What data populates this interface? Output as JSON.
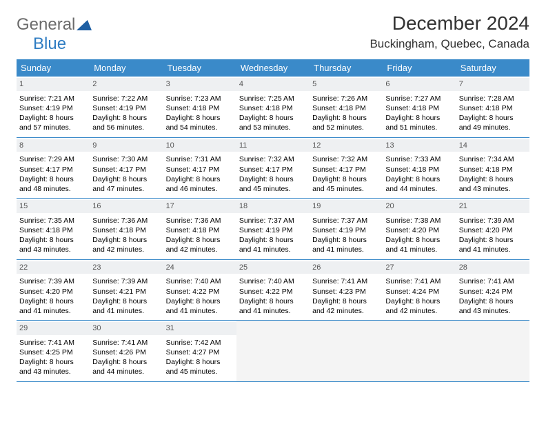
{
  "logo": {
    "text_general": "General",
    "text_blue": "Blue",
    "triangle_color": "#1e5fa3"
  },
  "header": {
    "month_title": "December 2024",
    "location": "Buckingham, Quebec, Canada"
  },
  "colors": {
    "header_bg": "#3a8ac9",
    "header_text": "#ffffff",
    "row_divider": "#3a8ac9",
    "daynum_bg": "#eef0f2"
  },
  "day_names": [
    "Sunday",
    "Monday",
    "Tuesday",
    "Wednesday",
    "Thursday",
    "Friday",
    "Saturday"
  ],
  "weeks": [
    [
      {
        "day": "1",
        "sunrise": "Sunrise: 7:21 AM",
        "sunset": "Sunset: 4:19 PM",
        "daylight": "Daylight: 8 hours and 57 minutes."
      },
      {
        "day": "2",
        "sunrise": "Sunrise: 7:22 AM",
        "sunset": "Sunset: 4:19 PM",
        "daylight": "Daylight: 8 hours and 56 minutes."
      },
      {
        "day": "3",
        "sunrise": "Sunrise: 7:23 AM",
        "sunset": "Sunset: 4:18 PM",
        "daylight": "Daylight: 8 hours and 54 minutes."
      },
      {
        "day": "4",
        "sunrise": "Sunrise: 7:25 AM",
        "sunset": "Sunset: 4:18 PM",
        "daylight": "Daylight: 8 hours and 53 minutes."
      },
      {
        "day": "5",
        "sunrise": "Sunrise: 7:26 AM",
        "sunset": "Sunset: 4:18 PM",
        "daylight": "Daylight: 8 hours and 52 minutes."
      },
      {
        "day": "6",
        "sunrise": "Sunrise: 7:27 AM",
        "sunset": "Sunset: 4:18 PM",
        "daylight": "Daylight: 8 hours and 51 minutes."
      },
      {
        "day": "7",
        "sunrise": "Sunrise: 7:28 AM",
        "sunset": "Sunset: 4:18 PM",
        "daylight": "Daylight: 8 hours and 49 minutes."
      }
    ],
    [
      {
        "day": "8",
        "sunrise": "Sunrise: 7:29 AM",
        "sunset": "Sunset: 4:17 PM",
        "daylight": "Daylight: 8 hours and 48 minutes."
      },
      {
        "day": "9",
        "sunrise": "Sunrise: 7:30 AM",
        "sunset": "Sunset: 4:17 PM",
        "daylight": "Daylight: 8 hours and 47 minutes."
      },
      {
        "day": "10",
        "sunrise": "Sunrise: 7:31 AM",
        "sunset": "Sunset: 4:17 PM",
        "daylight": "Daylight: 8 hours and 46 minutes."
      },
      {
        "day": "11",
        "sunrise": "Sunrise: 7:32 AM",
        "sunset": "Sunset: 4:17 PM",
        "daylight": "Daylight: 8 hours and 45 minutes."
      },
      {
        "day": "12",
        "sunrise": "Sunrise: 7:32 AM",
        "sunset": "Sunset: 4:17 PM",
        "daylight": "Daylight: 8 hours and 45 minutes."
      },
      {
        "day": "13",
        "sunrise": "Sunrise: 7:33 AM",
        "sunset": "Sunset: 4:18 PM",
        "daylight": "Daylight: 8 hours and 44 minutes."
      },
      {
        "day": "14",
        "sunrise": "Sunrise: 7:34 AM",
        "sunset": "Sunset: 4:18 PM",
        "daylight": "Daylight: 8 hours and 43 minutes."
      }
    ],
    [
      {
        "day": "15",
        "sunrise": "Sunrise: 7:35 AM",
        "sunset": "Sunset: 4:18 PM",
        "daylight": "Daylight: 8 hours and 43 minutes."
      },
      {
        "day": "16",
        "sunrise": "Sunrise: 7:36 AM",
        "sunset": "Sunset: 4:18 PM",
        "daylight": "Daylight: 8 hours and 42 minutes."
      },
      {
        "day": "17",
        "sunrise": "Sunrise: 7:36 AM",
        "sunset": "Sunset: 4:18 PM",
        "daylight": "Daylight: 8 hours and 42 minutes."
      },
      {
        "day": "18",
        "sunrise": "Sunrise: 7:37 AM",
        "sunset": "Sunset: 4:19 PM",
        "daylight": "Daylight: 8 hours and 41 minutes."
      },
      {
        "day": "19",
        "sunrise": "Sunrise: 7:37 AM",
        "sunset": "Sunset: 4:19 PM",
        "daylight": "Daylight: 8 hours and 41 minutes."
      },
      {
        "day": "20",
        "sunrise": "Sunrise: 7:38 AM",
        "sunset": "Sunset: 4:20 PM",
        "daylight": "Daylight: 8 hours and 41 minutes."
      },
      {
        "day": "21",
        "sunrise": "Sunrise: 7:39 AM",
        "sunset": "Sunset: 4:20 PM",
        "daylight": "Daylight: 8 hours and 41 minutes."
      }
    ],
    [
      {
        "day": "22",
        "sunrise": "Sunrise: 7:39 AM",
        "sunset": "Sunset: 4:20 PM",
        "daylight": "Daylight: 8 hours and 41 minutes."
      },
      {
        "day": "23",
        "sunrise": "Sunrise: 7:39 AM",
        "sunset": "Sunset: 4:21 PM",
        "daylight": "Daylight: 8 hours and 41 minutes."
      },
      {
        "day": "24",
        "sunrise": "Sunrise: 7:40 AM",
        "sunset": "Sunset: 4:22 PM",
        "daylight": "Daylight: 8 hours and 41 minutes."
      },
      {
        "day": "25",
        "sunrise": "Sunrise: 7:40 AM",
        "sunset": "Sunset: 4:22 PM",
        "daylight": "Daylight: 8 hours and 41 minutes."
      },
      {
        "day": "26",
        "sunrise": "Sunrise: 7:41 AM",
        "sunset": "Sunset: 4:23 PM",
        "daylight": "Daylight: 8 hours and 42 minutes."
      },
      {
        "day": "27",
        "sunrise": "Sunrise: 7:41 AM",
        "sunset": "Sunset: 4:24 PM",
        "daylight": "Daylight: 8 hours and 42 minutes."
      },
      {
        "day": "28",
        "sunrise": "Sunrise: 7:41 AM",
        "sunset": "Sunset: 4:24 PM",
        "daylight": "Daylight: 8 hours and 43 minutes."
      }
    ],
    [
      {
        "day": "29",
        "sunrise": "Sunrise: 7:41 AM",
        "sunset": "Sunset: 4:25 PM",
        "daylight": "Daylight: 8 hours and 43 minutes."
      },
      {
        "day": "30",
        "sunrise": "Sunrise: 7:41 AM",
        "sunset": "Sunset: 4:26 PM",
        "daylight": "Daylight: 8 hours and 44 minutes."
      },
      {
        "day": "31",
        "sunrise": "Sunrise: 7:42 AM",
        "sunset": "Sunset: 4:27 PM",
        "daylight": "Daylight: 8 hours and 45 minutes."
      },
      null,
      null,
      null,
      null
    ]
  ]
}
